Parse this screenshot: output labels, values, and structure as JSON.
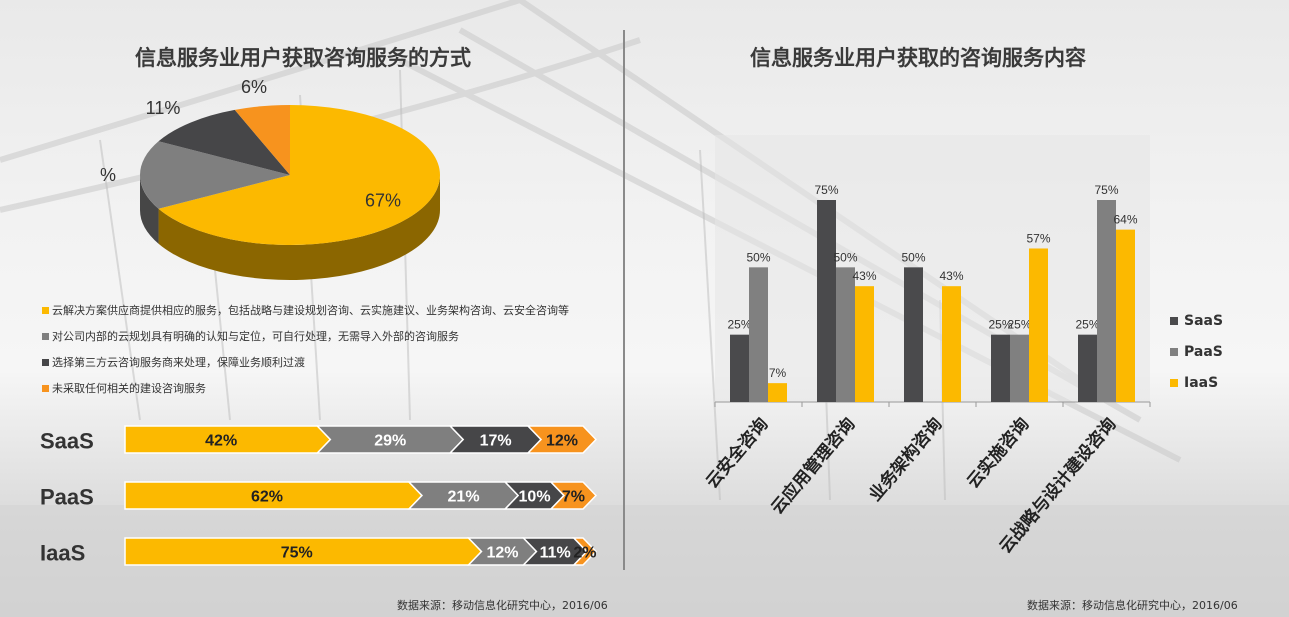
{
  "left_title": "信息服务业用户获取咨询服务的方式",
  "right_title": "信息服务业用户获取的咨询服务内容",
  "colors": {
    "saas": "#4a4a4c",
    "paas": "#808080",
    "iaas": "#fcb900",
    "orange": "#f7931e",
    "yellow": "#fcb900",
    "gray": "#7f7f7f",
    "dark": "#464648"
  },
  "pie_legend": [
    {
      "label": "云解决方案供应商提供相应的服务，包括战略与建设规划咨询、云实施建议、业务架构咨询、云安全咨询等",
      "color": "#fcb900"
    },
    {
      "label": "对公司内部的云规划具有明确的认知与定位，可自行处理，无需导入外部的咨询服务",
      "color": "#7f7f7f"
    },
    {
      "label": "选择第三方云咨询服务商来处理，保障业务顺利过渡",
      "color": "#464648"
    },
    {
      "label": "未采取任何相关的建设咨询服务",
      "color": "#f7931e"
    }
  ],
  "source_left": "数据来源：移动信息化研究中心，2016/06",
  "source_right": "数据来源：移动信息化研究中心，2016/06",
  "chart_data": [
    {
      "type": "pie",
      "title": "信息服务业用户获取咨询服务的方式",
      "slices": [
        {
          "label": "67%",
          "value": 67,
          "color": "#fcb900"
        },
        {
          "label": "16%",
          "value": 16,
          "color": "#7f7f7f"
        },
        {
          "label": "11%",
          "value": 11,
          "color": "#464648"
        },
        {
          "label": "6%",
          "value": 6,
          "color": "#f7931e"
        }
      ]
    },
    {
      "type": "bar",
      "orientation": "horizontal-stacked",
      "categories": [
        "SaaS",
        "PaaS",
        "IaaS"
      ],
      "series": [
        {
          "values": [
            42,
            62,
            75
          ],
          "labels": [
            "42%",
            "62%",
            "75%"
          ],
          "color": "#fcb900"
        },
        {
          "values": [
            29,
            21,
            12
          ],
          "labels": [
            "29%",
            "21%",
            "12%"
          ],
          "color": "#7f7f7f"
        },
        {
          "values": [
            17,
            10,
            11
          ],
          "labels": [
            "17%",
            "10%",
            "11%"
          ],
          "color": "#464648"
        },
        {
          "values": [
            12,
            7,
            2
          ],
          "labels": [
            "12%",
            "7%",
            "2%"
          ],
          "color": "#f7931e"
        }
      ]
    },
    {
      "type": "bar",
      "title": "信息服务业用户获取的咨询服务内容",
      "categories": [
        "云安全咨询",
        "云应用管理咨询",
        "业务架构咨询",
        "云实施咨询",
        "云战略与设计建设咨询"
      ],
      "series": [
        {
          "name": "SaaS",
          "values": [
            25,
            75,
            50,
            25,
            25
          ],
          "labels": [
            "25%",
            "75%",
            "50%",
            "25%",
            "25%"
          ],
          "color": "#4a4a4c"
        },
        {
          "name": "PaaS",
          "values": [
            50,
            50,
            null,
            25,
            75
          ],
          "labels": [
            "50%",
            "50%",
            "",
            "25%",
            "75%"
          ],
          "color": "#808080"
        },
        {
          "name": "IaaS",
          "values": [
            7,
            43,
            43,
            57,
            64
          ],
          "labels": [
            "7%",
            "43%",
            "43%",
            "57%",
            "64%"
          ],
          "color": "#fcb900"
        }
      ],
      "legend_labels": [
        "SaaS",
        "PaaS",
        "IaaS"
      ],
      "ylim": [
        0,
        90
      ],
      "legend": "right"
    }
  ]
}
